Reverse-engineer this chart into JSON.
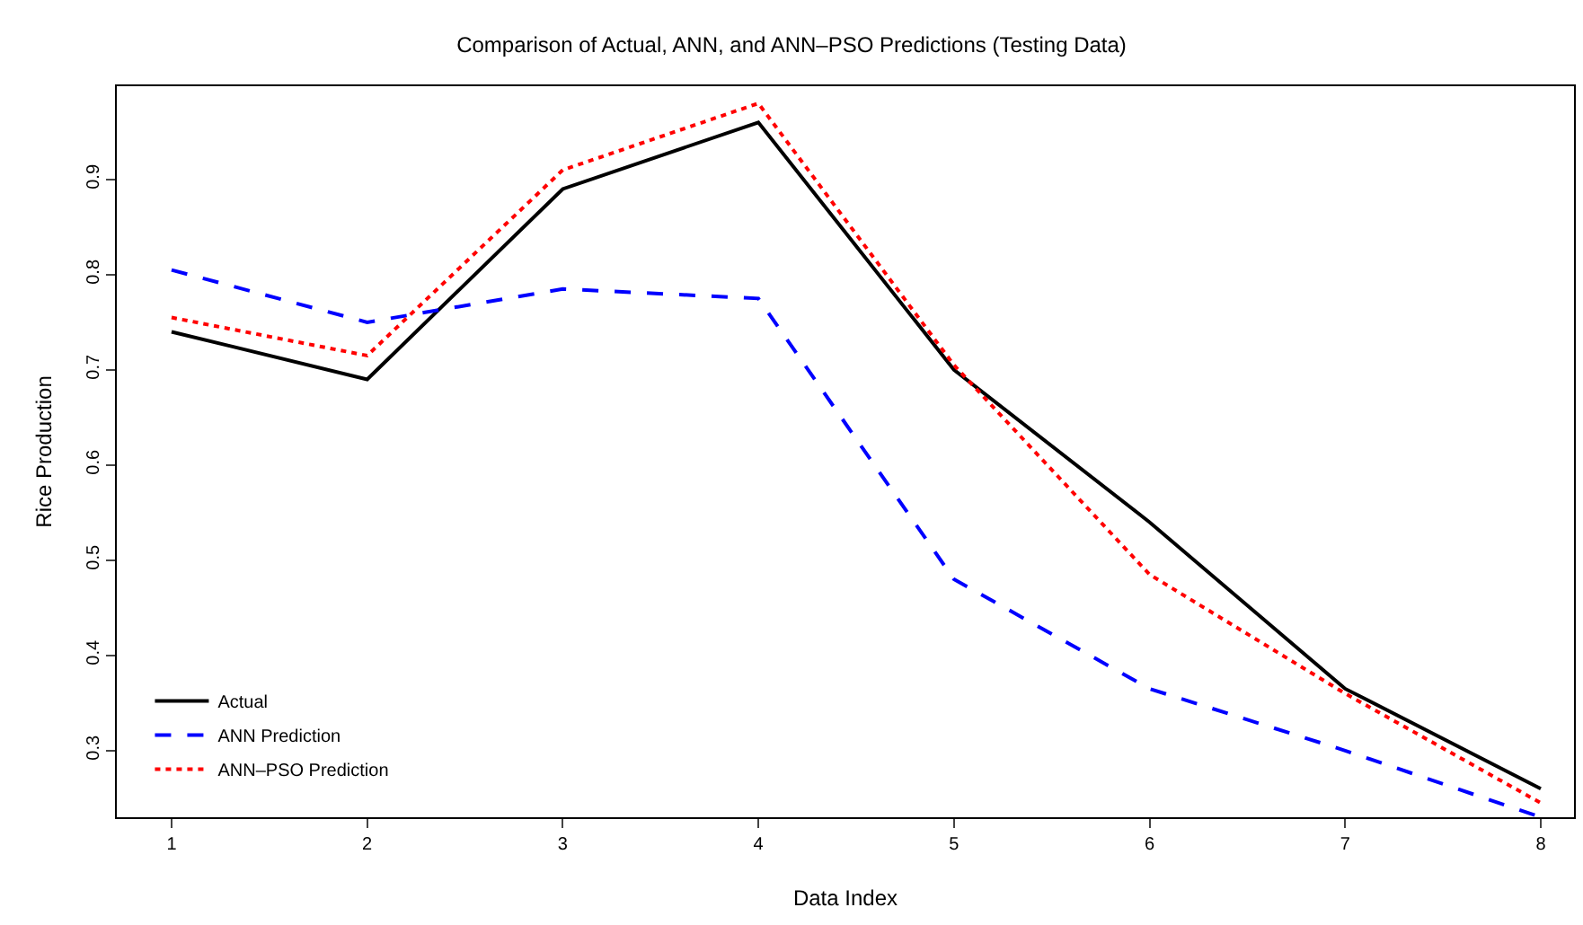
{
  "chart_data": {
    "type": "line",
    "title": "Comparison of Actual, ANN, and ANN–PSO Predictions (Testing Data)",
    "xlabel": "Data Index",
    "ylabel": "Rice Production",
    "x": [
      1,
      2,
      3,
      4,
      5,
      6,
      7,
      8
    ],
    "series": [
      {
        "name": "Actual",
        "color": "#000000",
        "line_style": "solid",
        "values": [
          0.74,
          0.69,
          0.89,
          0.96,
          0.7,
          0.54,
          0.365,
          0.26
        ]
      },
      {
        "name": "ANN Prediction",
        "color": "#0000ff",
        "line_style": "dashed",
        "values": [
          0.805,
          0.75,
          0.785,
          0.775,
          0.48,
          0.365,
          0.3,
          0.23
        ]
      },
      {
        "name": "ANN–PSO Prediction",
        "color": "#ff0000",
        "line_style": "dotted",
        "values": [
          0.755,
          0.715,
          0.91,
          0.98,
          0.705,
          0.485,
          0.36,
          0.245
        ]
      }
    ],
    "xlim": [
      0.72,
      8.17
    ],
    "xticks": [
      1,
      2,
      3,
      4,
      5,
      6,
      7,
      8
    ],
    "ylim": [
      0.23,
      0.998
    ],
    "yticks": [
      0.3,
      0.4,
      0.5,
      0.6,
      0.7,
      0.8,
      0.9
    ],
    "legend": "bottom left",
    "marker": "none"
  }
}
